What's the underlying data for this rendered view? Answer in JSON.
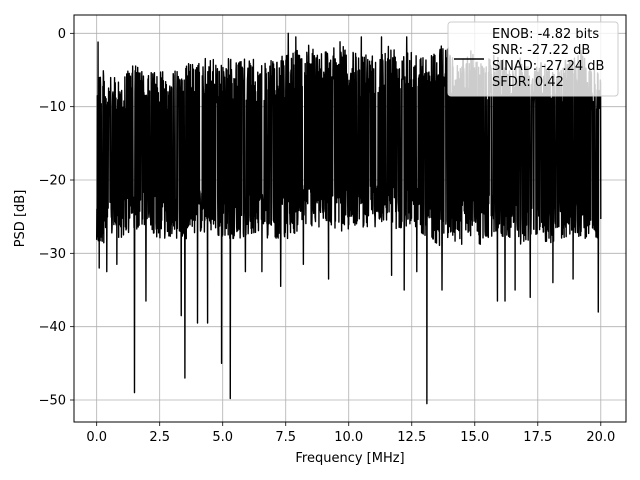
{
  "chart_data": {
    "type": "line",
    "xlabel": "Frequency [MHz]",
    "ylabel": "PSD [dB]",
    "xlim": [
      -0.9,
      21.0
    ],
    "ylim": [
      -53,
      2.5
    ],
    "xticks": [
      0.0,
      2.5,
      5.0,
      7.5,
      10.0,
      12.5,
      15.0,
      17.5,
      20.0
    ],
    "xtick_labels": [
      "0.0",
      "2.5",
      "5.0",
      "7.5",
      "10.0",
      "12.5",
      "15.0",
      "17.5",
      "20.0"
    ],
    "yticks": [
      0,
      -10,
      -20,
      -30,
      -40,
      -50
    ],
    "ytick_labels": [
      "0",
      "−10",
      "−20",
      "−30",
      "−40",
      "−50"
    ],
    "grid": true,
    "legend_placement": "top-right",
    "legend_entries": [
      "ENOB: -4.82 bits",
      "SNR: -27.22 dB",
      "SINAD: -27.24 dB",
      "SFDR: 0.42"
    ],
    "series": [
      {
        "color": "#000000",
        "x_start": 0.0,
        "x_end": 20.0,
        "envelope_max": [
          -3,
          -6,
          -6,
          -5,
          -4,
          -6,
          -4,
          -5,
          -5,
          -4,
          -4,
          -3,
          -4,
          -3,
          -4,
          -3,
          -4,
          -4,
          -3,
          -3,
          -2,
          -1,
          -2,
          -2,
          -1,
          -2,
          -3,
          -2,
          -3,
          -1,
          -2,
          -1,
          -3,
          -3,
          -1,
          -2,
          -4,
          -2,
          -4,
          -3,
          -3,
          -4,
          -3,
          -4,
          -4,
          -4,
          -4,
          -3,
          -2,
          -5,
          -5
        ],
        "envelope_min": [
          -30,
          -28,
          -28,
          -28,
          -27,
          -26,
          -28,
          -28,
          -28,
          -28,
          -27,
          -28,
          -28,
          -28,
          -28,
          -28,
          -27,
          -28,
          -28,
          -28,
          -27,
          -26,
          -27,
          -26,
          -27,
          -27,
          -26,
          -27,
          -26,
          -26,
          -27,
          -26,
          -27,
          -28,
          -29,
          -28,
          -29,
          -28,
          -29,
          -28,
          -28,
          -28,
          -29,
          -28,
          -28,
          -29,
          -28,
          -28,
          -28,
          -28,
          -28
        ],
        "dips": [
          {
            "x": 0.1,
            "y": -32
          },
          {
            "x": 0.4,
            "y": -32.5
          },
          {
            "x": 0.8,
            "y": -31.5
          },
          {
            "x": 1.5,
            "y": -49
          },
          {
            "x": 1.95,
            "y": -36.5
          },
          {
            "x": 3.5,
            "y": -47
          },
          {
            "x": 3.35,
            "y": -38.5
          },
          {
            "x": 4.0,
            "y": -39.5
          },
          {
            "x": 4.4,
            "y": -39.5
          },
          {
            "x": 4.95,
            "y": -45
          },
          {
            "x": 5.3,
            "y": -49.8
          },
          {
            "x": 5.9,
            "y": -32.5
          },
          {
            "x": 6.55,
            "y": -32.5
          },
          {
            "x": 7.3,
            "y": -34.5
          },
          {
            "x": 8.2,
            "y": -31.5
          },
          {
            "x": 9.2,
            "y": -33.5
          },
          {
            "x": 11.7,
            "y": -33
          },
          {
            "x": 12.2,
            "y": -35
          },
          {
            "x": 12.7,
            "y": -32.5
          },
          {
            "x": 13.1,
            "y": -50.5
          },
          {
            "x": 13.7,
            "y": -35
          },
          {
            "x": 15.9,
            "y": -36.5
          },
          {
            "x": 16.2,
            "y": -36.5
          },
          {
            "x": 16.6,
            "y": -35
          },
          {
            "x": 17.2,
            "y": -36
          },
          {
            "x": 18.1,
            "y": -34
          },
          {
            "x": 18.9,
            "y": -33.5
          },
          {
            "x": 19.9,
            "y": -38
          }
        ],
        "peaks": [
          {
            "x": 0.05,
            "y": -1.2
          },
          {
            "x": 7.6,
            "y": 0
          },
          {
            "x": 7.9,
            "y": -0.5
          },
          {
            "x": 10.5,
            "y": -0.5
          },
          {
            "x": 11.3,
            "y": -0.5
          },
          {
            "x": 12.3,
            "y": -0.5
          }
        ]
      }
    ]
  }
}
